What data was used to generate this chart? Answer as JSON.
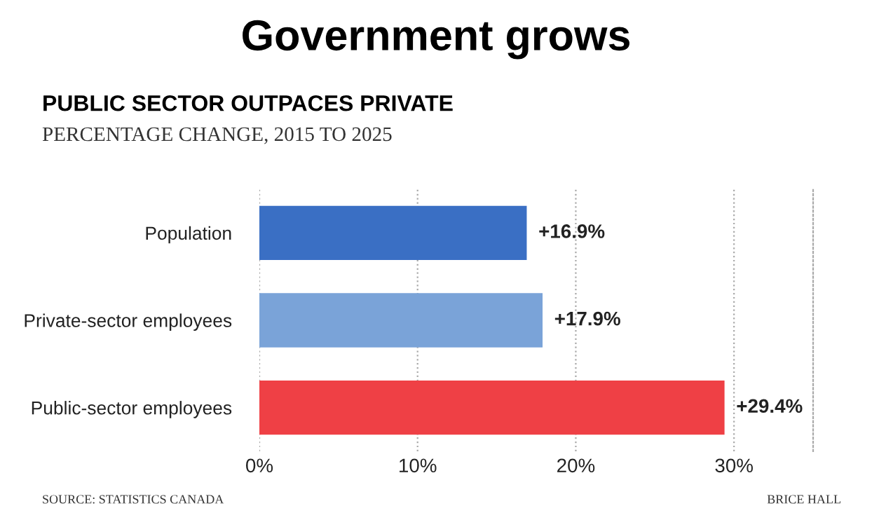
{
  "chart_data": {
    "type": "bar",
    "orientation": "horizontal",
    "title": "Government grows",
    "subtitle": "PUBLIC SECTOR OUTPACES PRIVATE",
    "annotations": [
      "PERCENTAGE CHANGE, 2015 TO 2025",
      "SOURCE: STATISTICS CANADA",
      "BRICE HALL"
    ],
    "categories": [
      "Population",
      "Private-sector employees",
      "Public-sector employees"
    ],
    "values": [
      16.9,
      17.9,
      29.4
    ],
    "colors": [
      "#3a6fc4",
      "#7aa3d8",
      "#ef4045"
    ],
    "value_labels": [
      "+16.9%",
      "+17.9%",
      "+29.4%"
    ],
    "xlim": [
      0,
      35
    ],
    "xticks": [
      {
        "value": 0,
        "label": "0%"
      },
      {
        "value": 10,
        "label": "10%"
      },
      {
        "value": 20,
        "label": "20%"
      },
      {
        "value": 30,
        "label": "30%"
      }
    ],
    "grid": "x",
    "legend": false
  }
}
